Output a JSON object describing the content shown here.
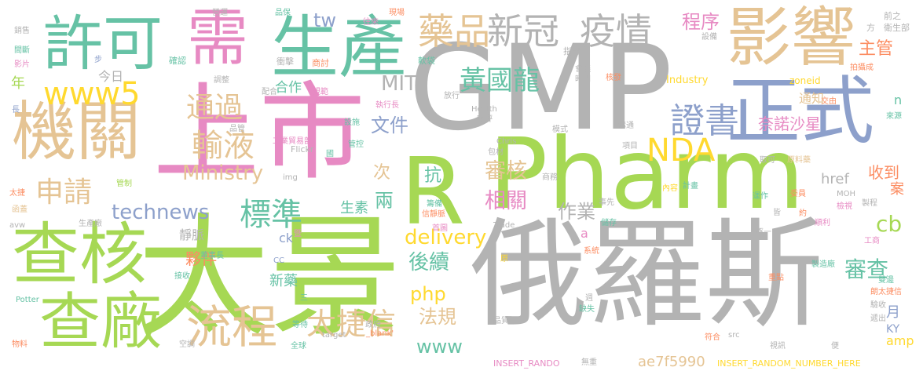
{
  "palette": {
    "gray": "#b3b3b3",
    "green": "#a6d854",
    "pink": "#e78ac3",
    "tan": "#e5c494",
    "teal": "#66c2a5",
    "blue": "#8da0cb",
    "yellow": "#ffd92f",
    "orange": "#fc8d62"
  },
  "words": [
    {
      "text": "GMP",
      "color": "gray"
    },
    {
      "text": "俄羅斯",
      "color": "gray"
    },
    {
      "text": "太景",
      "color": "green"
    },
    {
      "text": "上市",
      "color": "pink"
    },
    {
      "text": "R",
      "color": "green"
    },
    {
      "text": "Pharm",
      "color": "green"
    },
    {
      "text": "查核",
      "color": "green"
    },
    {
      "text": "機關",
      "color": "tan"
    },
    {
      "text": "生產",
      "color": "teal"
    },
    {
      "text": "需",
      "color": "pink"
    },
    {
      "text": "許可",
      "color": "teal"
    },
    {
      "text": "影響",
      "color": "tan"
    },
    {
      "text": "正式",
      "color": "blue"
    },
    {
      "text": "查廠",
      "color": "green"
    },
    {
      "text": "流程",
      "color": "tan"
    },
    {
      "text": "藥品",
      "color": "tan"
    },
    {
      "text": "新冠",
      "color": "gray"
    },
    {
      "text": "疫情",
      "color": "gray"
    },
    {
      "text": "www5",
      "color": "yellow"
    },
    {
      "text": "通過",
      "color": "tan"
    },
    {
      "text": "輸液",
      "color": "tan"
    },
    {
      "text": "申請",
      "color": "tan"
    },
    {
      "text": "標準",
      "color": "teal"
    },
    {
      "text": "證書",
      "color": "blue"
    },
    {
      "text": "NDA",
      "color": "yellow"
    },
    {
      "text": "黃國龍",
      "color": "teal"
    },
    {
      "text": "太捷信",
      "color": "tan"
    },
    {
      "text": "technews",
      "color": "blue"
    },
    {
      "text": "Ministry",
      "color": "tan"
    },
    {
      "text": "delivery",
      "color": "yellow"
    },
    {
      "text": "審核",
      "color": "tan"
    },
    {
      "text": "相關",
      "color": "pink"
    },
    {
      "text": "作業",
      "color": "gray"
    },
    {
      "text": "後續",
      "color": "teal"
    },
    {
      "text": "文件",
      "color": "blue"
    },
    {
      "text": "MIT",
      "color": "gray"
    },
    {
      "text": "程序",
      "color": "pink"
    },
    {
      "text": "主管",
      "color": "orange"
    },
    {
      "text": "通知",
      "color": "tan"
    },
    {
      "text": "奈諾沙星",
      "color": "pink"
    },
    {
      "text": "href",
      "color": "gray"
    },
    {
      "text": "收到",
      "color": "orange"
    },
    {
      "text": "cb",
      "color": "green"
    },
    {
      "text": "審查",
      "color": "teal"
    },
    {
      "text": "php",
      "color": "yellow"
    },
    {
      "text": "法規",
      "color": "tan"
    },
    {
      "text": "www",
      "color": "teal"
    },
    {
      "text": "amp",
      "color": "yellow"
    },
    {
      "text": "ae7f5990",
      "color": "tan"
    },
    {
      "text": "夥伴",
      "color": "orange"
    },
    {
      "text": "新藥",
      "color": "teal"
    },
    {
      "text": "靜脈",
      "color": "gray"
    },
    {
      "text": "兩",
      "color": "teal"
    },
    {
      "text": "抗",
      "color": "teal"
    },
    {
      "text": "次",
      "color": "tan"
    },
    {
      "text": "生素",
      "color": "teal"
    },
    {
      "text": "tw",
      "color": "blue"
    },
    {
      "text": "合作",
      "color": "teal"
    },
    {
      "text": "今日",
      "color": "gray"
    },
    {
      "text": "年",
      "color": "green"
    },
    {
      "text": "KY",
      "color": "blue"
    },
    {
      "text": "月",
      "color": "blue"
    },
    {
      "text": "案",
      "color": "orange"
    },
    {
      "text": "n",
      "color": "teal"
    },
    {
      "text": "ck",
      "color": "blue"
    },
    {
      "text": "a",
      "color": "pink"
    },
    {
      "text": "Industry",
      "color": "yellow"
    },
    {
      "text": "zoneid",
      "color": "yellow"
    },
    {
      "text": "INSERT_RANDOM_NUMBER_HERE",
      "color": "yellow"
    },
    {
      "text": "INSERT_RANDO",
      "color": "pink"
    },
    {
      "text": "營運",
      "color": "gray"
    },
    {
      "text": "品保",
      "color": "teal"
    },
    {
      "text": "現場",
      "color": "orange"
    },
    {
      "text": "往來",
      "color": "pink"
    },
    {
      "text": "銷售",
      "color": "gray"
    },
    {
      "text": "間斷",
      "color": "teal"
    },
    {
      "text": "影片",
      "color": "pink"
    },
    {
      "text": "步",
      "color": "blue"
    },
    {
      "text": "確認",
      "color": "teal"
    },
    {
      "text": "衝擊",
      "color": "gray"
    },
    {
      "text": "商討",
      "color": "orange"
    },
    {
      "text": "軟袋",
      "color": "teal"
    },
    {
      "text": "指出",
      "color": "gray"
    },
    {
      "text": "會議",
      "color": "gray"
    },
    {
      "text": "時間",
      "color": "gray"
    },
    {
      "text": "核發",
      "color": "orange"
    },
    {
      "text": "設備",
      "color": "gray"
    },
    {
      "text": "拍攝成",
      "color": "orange"
    },
    {
      "text": "前之",
      "color": "gray"
    },
    {
      "text": "衛生部",
      "color": "gray"
    },
    {
      "text": "方",
      "color": "gray"
    },
    {
      "text": "調整",
      "color": "gray"
    },
    {
      "text": "配合",
      "color": "gray"
    },
    {
      "text": "規範",
      "color": "pink"
    },
    {
      "text": "放行",
      "color": "gray"
    },
    {
      "text": "Health",
      "color": "gray"
    },
    {
      "text": "審評",
      "color": "gray"
    },
    {
      "text": "執行長",
      "color": "pink"
    },
    {
      "text": "交由",
      "color": "orange"
    },
    {
      "text": "來源",
      "color": "teal"
    },
    {
      "text": "長",
      "color": "blue"
    },
    {
      "text": "品管",
      "color": "gray"
    },
    {
      "text": "工業貿易部",
      "color": "pink"
    },
    {
      "text": "設施",
      "color": "teal"
    },
    {
      "text": "管控",
      "color": "teal"
    },
    {
      "text": "Chris",
      "color": "gray"
    },
    {
      "text": "模式",
      "color": "gray"
    },
    {
      "text": "包材",
      "color": "gray"
    },
    {
      "text": "溝通",
      "color": "gray"
    },
    {
      "text": "項目",
      "color": "gray"
    },
    {
      "text": "取可",
      "color": "gray"
    },
    {
      "text": "原料藥",
      "color": "tan"
    },
    {
      "text": "Flickr",
      "color": "gray"
    },
    {
      "text": "國",
      "color": "teal"
    },
    {
      "text": "img",
      "color": "gray"
    },
    {
      "text": "商務",
      "color": "gray"
    },
    {
      "text": "內容",
      "color": "yellow"
    },
    {
      "text": "計畫",
      "color": "teal"
    },
    {
      "text": "運作",
      "color": "teal"
    },
    {
      "text": "委員",
      "color": "orange"
    },
    {
      "text": "MOH",
      "color": "gray"
    },
    {
      "text": "製程",
      "color": "gray"
    },
    {
      "text": "檢視",
      "color": "pink"
    },
    {
      "text": "約",
      "color": "orange"
    },
    {
      "text": "皆",
      "color": "gray"
    },
    {
      "text": "事先",
      "color": "gray"
    },
    {
      "text": "儲存",
      "color": "teal"
    },
    {
      "text": "管制",
      "color": "green"
    },
    {
      "text": "太捷",
      "color": "orange"
    },
    {
      "text": "函蓋",
      "color": "tan"
    },
    {
      "text": "avw",
      "color": "gray"
    },
    {
      "text": "生產廠",
      "color": "gray"
    },
    {
      "text": "董事長",
      "color": "teal"
    },
    {
      "text": "籌備",
      "color": "teal"
    },
    {
      "text": "信靜脈",
      "color": "orange"
    },
    {
      "text": "首圖",
      "color": "pink"
    },
    {
      "text": "Trade",
      "color": "gray"
    },
    {
      "text": "系統",
      "color": "orange"
    },
    {
      "text": "逐一",
      "color": "gray"
    },
    {
      "text": "順利",
      "color": "pink"
    },
    {
      "text": "工商",
      "color": "pink"
    },
    {
      "text": "暨",
      "color": "pink"
    },
    {
      "text": "CC",
      "color": "blue"
    },
    {
      "text": "原",
      "color": "yellow"
    },
    {
      "text": "製造廠",
      "color": "teal"
    },
    {
      "text": "接收",
      "color": "teal"
    },
    {
      "text": "重點",
      "color": "orange"
    },
    {
      "text": "雙邊",
      "color": "teal"
    },
    {
      "text": "朗太捷信",
      "color": "orange"
    },
    {
      "text": "Potter",
      "color": "teal"
    },
    {
      "text": "三",
      "color": "teal"
    },
    {
      "text": "週",
      "color": "gray"
    },
    {
      "text": "驗收",
      "color": "gray"
    },
    {
      "text": "缺失",
      "color": "teal"
    },
    {
      "text": "遞出",
      "color": "gray"
    },
    {
      "text": "等待",
      "color": "teal"
    },
    {
      "text": "政府",
      "color": "gray"
    },
    {
      "text": "target",
      "color": "gray"
    },
    {
      "text": "_blank'",
      "color": "orange"
    },
    {
      "text": "物料",
      "color": "orange"
    },
    {
      "text": "空調",
      "color": "gray"
    },
    {
      "text": "全球",
      "color": "teal"
    },
    {
      "text": "品質",
      "color": "gray"
    },
    {
      "text": "無重",
      "color": "gray"
    },
    {
      "text": "src",
      "color": "gray"
    },
    {
      "text": "符合",
      "color": "orange"
    },
    {
      "text": "視訊",
      "color": "gray"
    },
    {
      "text": "便",
      "color": "gray"
    }
  ]
}
